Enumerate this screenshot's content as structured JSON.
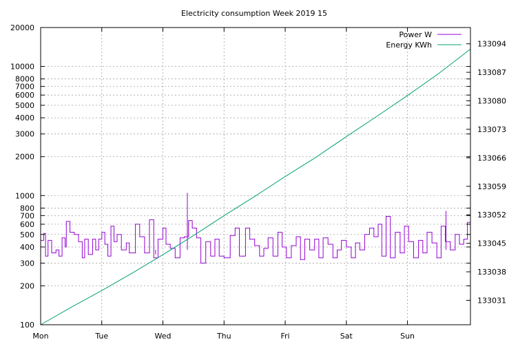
{
  "chart_data": {
    "type": "line",
    "title": "Electricity consumption Week 2019 15",
    "xlabel": "",
    "ylabel": "",
    "y2label": "",
    "legend_position": "top-right",
    "grid": true,
    "x_ticks": [
      "Mon",
      "Tue",
      "Wed",
      "Thu",
      "Fri",
      "Sat",
      "Sun"
    ],
    "x_range_days": [
      0,
      7.03
    ],
    "y_scale": "log",
    "ylim": [
      100,
      20000
    ],
    "y_ticks": [
      100,
      200,
      300,
      400,
      500,
      600,
      700,
      800,
      1000,
      2000,
      3000,
      4000,
      5000,
      6000,
      7000,
      8000,
      10000,
      20000
    ],
    "y2_scale": "linear",
    "y2lim": [
      133025,
      133098
    ],
    "y2_ticks": [
      133031,
      133038,
      133045,
      133052,
      133059,
      133066,
      133073,
      133080,
      133087,
      133094
    ],
    "series": [
      {
        "name": "Power W",
        "axis": "y",
        "color": "#9400d3",
        "step": true,
        "spikes": [
          [
            1.88,
            350
          ],
          [
            2.4,
            1050
          ],
          [
            6.63,
            760
          ]
        ],
        "points": [
          [
            0.0,
            450
          ],
          [
            0.05,
            510
          ],
          [
            0.08,
            340
          ],
          [
            0.12,
            450
          ],
          [
            0.18,
            360
          ],
          [
            0.25,
            380
          ],
          [
            0.3,
            340
          ],
          [
            0.35,
            470
          ],
          [
            0.4,
            400
          ],
          [
            0.42,
            630
          ],
          [
            0.48,
            520
          ],
          [
            0.55,
            500
          ],
          [
            0.62,
            440
          ],
          [
            0.68,
            330
          ],
          [
            0.72,
            460
          ],
          [
            0.78,
            350
          ],
          [
            0.85,
            460
          ],
          [
            0.9,
            380
          ],
          [
            0.95,
            460
          ],
          [
            1.0,
            520
          ],
          [
            1.05,
            420
          ],
          [
            1.1,
            340
          ],
          [
            1.15,
            580
          ],
          [
            1.2,
            440
          ],
          [
            1.25,
            500
          ],
          [
            1.32,
            380
          ],
          [
            1.4,
            430
          ],
          [
            1.45,
            360
          ],
          [
            1.55,
            600
          ],
          [
            1.62,
            480
          ],
          [
            1.7,
            360
          ],
          [
            1.78,
            650
          ],
          [
            1.85,
            330
          ],
          [
            1.92,
            460
          ],
          [
            2.0,
            560
          ],
          [
            2.05,
            420
          ],
          [
            2.12,
            390
          ],
          [
            2.2,
            330
          ],
          [
            2.28,
            470
          ],
          [
            2.35,
            480
          ],
          [
            2.42,
            640
          ],
          [
            2.48,
            560
          ],
          [
            2.55,
            470
          ],
          [
            2.62,
            300
          ],
          [
            2.7,
            440
          ],
          [
            2.78,
            340
          ],
          [
            2.85,
            460
          ],
          [
            2.92,
            340
          ],
          [
            3.0,
            330
          ],
          [
            3.1,
            490
          ],
          [
            3.18,
            560
          ],
          [
            3.25,
            340
          ],
          [
            3.35,
            560
          ],
          [
            3.42,
            460
          ],
          [
            3.5,
            410
          ],
          [
            3.58,
            340
          ],
          [
            3.65,
            390
          ],
          [
            3.72,
            470
          ],
          [
            3.8,
            340
          ],
          [
            3.88,
            520
          ],
          [
            3.95,
            400
          ],
          [
            4.02,
            330
          ],
          [
            4.1,
            410
          ],
          [
            4.18,
            480
          ],
          [
            4.25,
            320
          ],
          [
            4.32,
            460
          ],
          [
            4.4,
            380
          ],
          [
            4.48,
            460
          ],
          [
            4.55,
            330
          ],
          [
            4.62,
            470
          ],
          [
            4.7,
            420
          ],
          [
            4.78,
            330
          ],
          [
            4.85,
            380
          ],
          [
            4.92,
            450
          ],
          [
            5.0,
            400
          ],
          [
            5.08,
            330
          ],
          [
            5.15,
            430
          ],
          [
            5.22,
            380
          ],
          [
            5.3,
            500
          ],
          [
            5.38,
            560
          ],
          [
            5.45,
            480
          ],
          [
            5.52,
            600
          ],
          [
            5.58,
            340
          ],
          [
            5.65,
            690
          ],
          [
            5.72,
            330
          ],
          [
            5.8,
            520
          ],
          [
            5.88,
            360
          ],
          [
            5.95,
            580
          ],
          [
            6.02,
            440
          ],
          [
            6.1,
            330
          ],
          [
            6.18,
            450
          ],
          [
            6.25,
            360
          ],
          [
            6.32,
            520
          ],
          [
            6.4,
            430
          ],
          [
            6.48,
            330
          ],
          [
            6.55,
            580
          ],
          [
            6.62,
            440
          ],
          [
            6.7,
            380
          ],
          [
            6.78,
            500
          ],
          [
            6.85,
            420
          ],
          [
            6.92,
            460
          ],
          [
            6.98,
            620
          ],
          [
            7.03,
            540
          ]
        ]
      },
      {
        "name": "Energy KWh",
        "axis": "y2",
        "color": "#009e73",
        "step": false,
        "points": [
          [
            0.0,
            133025.0
          ],
          [
            0.5,
            133029.3
          ],
          [
            1.0,
            133033.4
          ],
          [
            1.5,
            133037.7
          ],
          [
            2.0,
            133042.2
          ],
          [
            2.5,
            133046.9
          ],
          [
            3.0,
            133051.8
          ],
          [
            3.5,
            133056.5
          ],
          [
            4.0,
            133061.4
          ],
          [
            4.5,
            133066.1
          ],
          [
            5.0,
            133071.2
          ],
          [
            5.5,
            133076.2
          ],
          [
            6.0,
            133081.3
          ],
          [
            6.5,
            133086.6
          ],
          [
            7.03,
            133092.7
          ]
        ]
      }
    ]
  }
}
